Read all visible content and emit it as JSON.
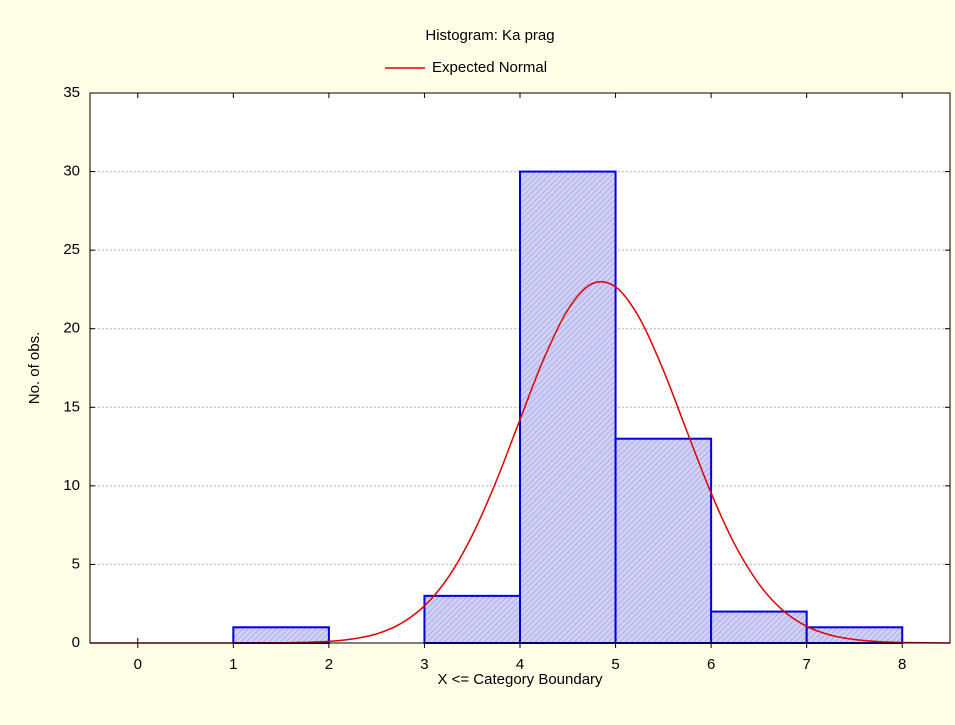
{
  "chart_data": {
    "type": "histogram",
    "title": "Histogram: Ka prag",
    "xlabel": "X <= Category Boundary",
    "ylabel": "No. of obs.",
    "bins": [
      0,
      1,
      2,
      3,
      4,
      5,
      6,
      7,
      8
    ],
    "values": [
      0,
      1,
      0,
      3,
      30,
      13,
      2,
      1
    ],
    "color": "#0000e0",
    "fill": "#c8c8f4",
    "series": [
      {
        "name": "Expected Normal",
        "color": "#e00000",
        "x": [
          -0.5,
          1,
          1.5,
          1.75,
          2,
          2.25,
          2.5,
          2.75,
          3,
          3.25,
          3.5,
          3.75,
          4,
          4.25,
          4.5,
          4.75,
          5,
          5.25,
          5.5,
          5.75,
          6,
          6.25,
          6.5,
          6.75,
          7,
          7.25,
          7.5,
          7.75,
          8,
          8.5
        ],
        "values": [
          0,
          0,
          0.01,
          0.04,
          0.1,
          0.26,
          0.58,
          1.23,
          2.36,
          4.19,
          6.85,
          10.28,
          14.22,
          18.1,
          21.2,
          22.85,
          22.66,
          20.68,
          17.36,
          13.42,
          9.54,
          6.24,
          3.76,
          2.08,
          1.06,
          0.5,
          0.22,
          0.09,
          0.03,
          0
        ]
      }
    ],
    "xlim": [
      -0.5,
      8.5
    ],
    "xticks": [
      0,
      1,
      2,
      3,
      4,
      5,
      6,
      7,
      8
    ],
    "ylim": [
      0,
      35
    ],
    "yticks": [
      0,
      5,
      10,
      15,
      20,
      25,
      30,
      35
    ],
    "grid": true
  }
}
